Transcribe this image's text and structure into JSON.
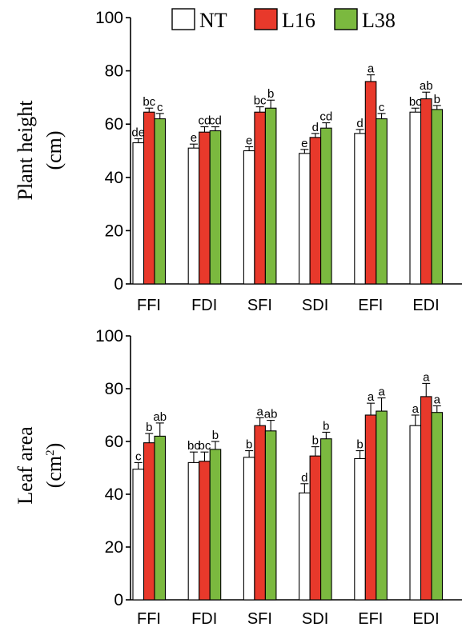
{
  "colors": {
    "NT": "#ffffff",
    "L16": "#e8392b",
    "L38": "#7bb93f",
    "axis": "#000000"
  },
  "legend": [
    {
      "name": "NT",
      "color": "#ffffff"
    },
    {
      "name": "L16",
      "color": "#e8392b"
    },
    {
      "name": "L38",
      "color": "#7bb93f"
    }
  ],
  "chart_data": [
    {
      "type": "bar",
      "ylabel_line1": "Plant height",
      "ylabel_line2": "(cm)",
      "ylim": [
        0,
        100
      ],
      "yticks": [
        0,
        20,
        40,
        60,
        80,
        100
      ],
      "categories": [
        "FFI",
        "FDI",
        "SFI",
        "SDI",
        "EFI",
        "EDI"
      ],
      "legend_position": "top",
      "series": [
        {
          "name": "NT",
          "values": [
            53,
            51,
            50,
            49,
            56.5,
            64.5
          ],
          "errors": [
            1.5,
            1.5,
            1.5,
            1.5,
            1.5,
            1.5
          ],
          "labels": [
            "de",
            "e",
            "e",
            "e",
            "d",
            "bc"
          ]
        },
        {
          "name": "L16",
          "values": [
            64.5,
            57,
            64.5,
            55,
            76,
            69.5
          ],
          "errors": [
            1.5,
            2,
            2,
            1.5,
            2.5,
            2.5
          ],
          "labels": [
            "bc",
            "cd",
            "bc",
            "d",
            "a",
            "ab"
          ]
        },
        {
          "name": "L38",
          "values": [
            62,
            57.5,
            66,
            58.5,
            62,
            65.5
          ],
          "errors": [
            2,
            1.5,
            3,
            2,
            2,
            1.5
          ],
          "labels": [
            "c",
            "cd",
            "b",
            "cd",
            "c",
            "b"
          ]
        }
      ]
    },
    {
      "type": "bar",
      "ylabel_line1": "Leaf area",
      "ylabel_line2": "(cm",
      "ylabel_sup": "2",
      "ylabel_line2_end": ")",
      "ylim": [
        0,
        100
      ],
      "yticks": [
        0,
        20,
        40,
        60,
        80,
        100
      ],
      "categories": [
        "FFI",
        "FDI",
        "SFI",
        "SDI",
        "EFI",
        "EDI"
      ],
      "series": [
        {
          "name": "NT",
          "values": [
            49.5,
            52,
            54,
            40.5,
            53.5,
            66
          ],
          "errors": [
            2.5,
            4,
            2.5,
            3.5,
            3,
            4
          ],
          "labels": [
            "c",
            "bc",
            "b",
            "d",
            "b",
            "a"
          ]
        },
        {
          "name": "L16",
          "values": [
            59.5,
            52.5,
            66,
            54.5,
            70,
            77
          ],
          "errors": [
            3.5,
            3.5,
            3,
            3.5,
            4.5,
            5
          ],
          "labels": [
            "b",
            "bc",
            "a",
            "b",
            "a",
            "a"
          ]
        },
        {
          "name": "L38",
          "values": [
            62,
            57,
            64,
            61,
            71.5,
            71
          ],
          "errors": [
            5,
            3,
            4,
            2.5,
            5,
            2.5
          ],
          "labels": [
            "ab",
            "b",
            "ab",
            "b",
            "a",
            "a"
          ]
        }
      ]
    }
  ]
}
